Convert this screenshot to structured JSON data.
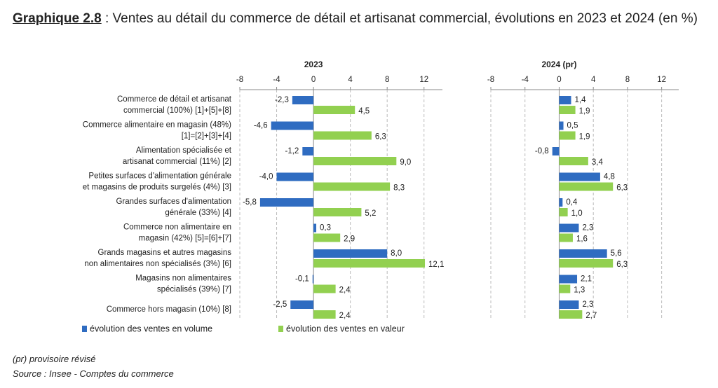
{
  "header": {
    "title_label": "Graphique 2.8",
    "title": ": Ventes au détail du commerce de détail et artisanat commercial, évolutions en 2023 et 2024 (en %)"
  },
  "chart_data": [
    {
      "type": "hbar",
      "title": "2023",
      "categories": [
        [
          "Commerce de détail et artisanat",
          "commercial  (100%) [1]+[5]+[8]"
        ],
        [
          "Commerce alimentaire en magasin (48%)",
          "[1]=[2]+[3]+[4]"
        ],
        [
          "Alimentation spécialisée et",
          "artisanat commercial (11%) [2]"
        ],
        [
          "Petites surfaces d'alimentation générale",
          "et magasins de produits surgelés (4%) [3]"
        ],
        [
          "Grandes surfaces d'alimentation",
          "générale (33%) [4]"
        ],
        [
          "Commerce non alimentaire en",
          "magasin (42%) [5]=[6]+[7]"
        ],
        [
          "Grands magasins et autres magasins",
          "non alimentaires non spécialisés (3%) [6]"
        ],
        [
          "Magasins non alimentaires",
          "spécialisés (39%) [7]"
        ],
        [
          "Commerce hors magasin (10%) [8]"
        ]
      ],
      "series": [
        {
          "name": "évolution des ventes en volume",
          "color": "#2f6cc1",
          "values": [
            -2.3,
            -4.6,
            -1.2,
            -4.0,
            -5.8,
            0.3,
            8.0,
            -0.1,
            -2.5
          ],
          "value_labels": [
            "-2,3",
            "-4,6",
            "-1,2",
            "-4,0",
            "-5,8",
            "0,3",
            "8,0",
            "-0,1",
            "-2,5"
          ]
        },
        {
          "name": "évolution des ventes en valeur",
          "color": "#92d050",
          "values": [
            4.5,
            6.3,
            9.0,
            8.3,
            5.2,
            2.9,
            12.1,
            2.4,
            2.4
          ],
          "value_labels": [
            "4,5",
            "6,3",
            "9,0",
            "8,3",
            "5,2",
            "2,9",
            "12,1",
            "2,4",
            "2,4"
          ]
        }
      ],
      "xlim": [
        -8,
        14
      ],
      "xticks": [
        -8,
        -4,
        0,
        4,
        8,
        12
      ],
      "grid": true
    },
    {
      "type": "hbar",
      "title": "2024 (pr)",
      "series": [
        {
          "color": "#2f6cc1",
          "values": [
            1.4,
            0.5,
            -0.8,
            4.8,
            0.4,
            2.3,
            5.6,
            2.1,
            2.3
          ],
          "value_labels": [
            "1,4",
            "0,5",
            "-0,8",
            "4,8",
            "0,4",
            "2,3",
            "5,6",
            "2,1",
            "2,3"
          ]
        },
        {
          "color": "#92d050",
          "values": [
            1.9,
            1.9,
            3.4,
            6.3,
            1.0,
            1.6,
            6.3,
            1.3,
            2.7
          ],
          "value_labels": [
            "1,9",
            "1,9",
            "3,4",
            "6,3",
            "1,0",
            "1,6",
            "6,3",
            "1,3",
            "2,7"
          ]
        }
      ],
      "xlim": [
        -8,
        14
      ],
      "xticks": [
        -8,
        -4,
        0,
        4,
        8,
        12
      ],
      "grid": true
    }
  ],
  "footnotes": [
    "(pr) provisoire révisé",
    "Source : Insee - Comptes du commerce"
  ]
}
